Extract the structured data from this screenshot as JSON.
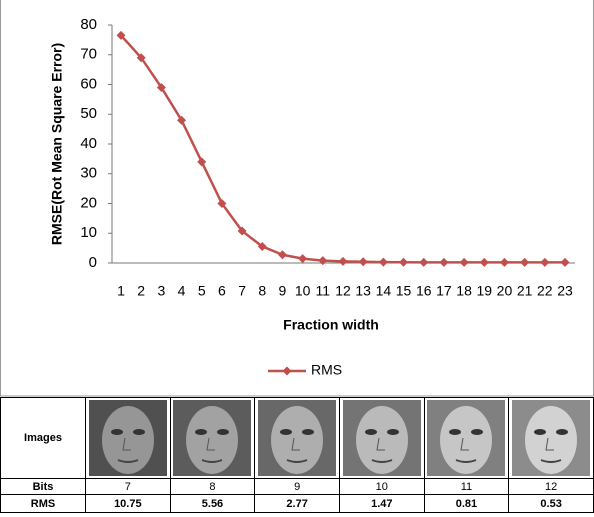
{
  "chart_data": {
    "type": "line",
    "x_label": "Fraction width",
    "y_label": "RMSE(Rot Mean  Square Error)",
    "categories": [
      "1",
      "2",
      "3",
      "4",
      "5",
      "6",
      "7",
      "8",
      "9",
      "10",
      "11",
      "12",
      "13",
      "14",
      "15",
      "16",
      "17",
      "18",
      "19",
      "20",
      "21",
      "22",
      "23"
    ],
    "series": [
      {
        "name": "RMS",
        "color": "#c0504d",
        "values": [
          76.5,
          69,
          59,
          48,
          34,
          20,
          10.75,
          5.56,
          2.77,
          1.47,
          0.81,
          0.53,
          0.4,
          0.3,
          0.25,
          0.2,
          0.2,
          0.2,
          0.2,
          0.2,
          0.2,
          0.2,
          0.2
        ]
      }
    ],
    "ylim": [
      0,
      80
    ],
    "yticks": [
      0,
      10,
      20,
      30,
      40,
      50,
      60,
      70,
      80
    ],
    "grid": false,
    "legend": "bottom"
  },
  "table": {
    "header": "Images",
    "rows": [
      [
        "Bits",
        "7",
        "8",
        "9",
        "10",
        "11",
        "12"
      ],
      [
        "RMS",
        "10.75",
        "5.56",
        "2.77",
        "1.47",
        "0.81",
        "0.53"
      ]
    ]
  }
}
